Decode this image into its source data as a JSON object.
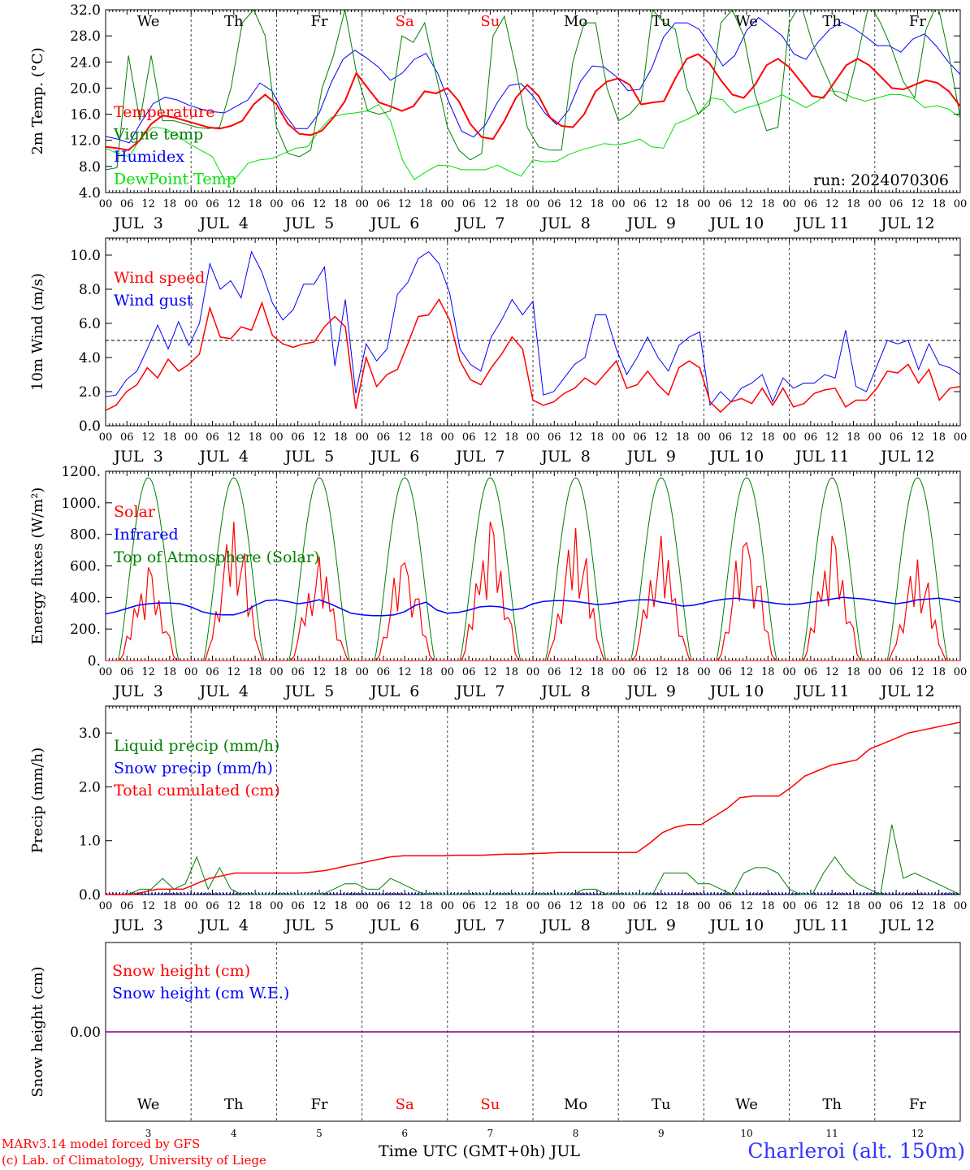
{
  "footer": {
    "credit_line1": "MARv3.14 model forced by GFS",
    "credit_line2": "(c) Lab. of Climatology, University of Liege",
    "station": "Charleroi (alt. 150m)",
    "xaxis_title": "Time UTC (GMT+0h) JUL"
  },
  "colors": {
    "red": "#ff0000",
    "green": "#008000",
    "blue": "#0000ff",
    "lightgreen": "#00e000",
    "purple": "#800080",
    "grid": "#404040"
  },
  "chart_data": [
    {
      "type": "line",
      "ylabel": "2m Temp. (°C)",
      "ylim": [
        4.0,
        32.0
      ],
      "yticks": [
        "4.0",
        "8.0",
        "12.0",
        "16.0",
        "20.0",
        "24.0",
        "28.0",
        "32.0"
      ],
      "annotation": "run: 2024070306",
      "hour_ticks": [
        "00",
        "06",
        "12",
        "18"
      ],
      "day_labels": [
        "JUL  3",
        "JUL  4",
        "JUL  5",
        "JUL  6",
        "JUL  7",
        "JUL  8",
        "JUL  9",
        "JUL 10",
        "JUL 11",
        "JUL 12"
      ],
      "weekdays": [
        "We",
        "Th",
        "Fr",
        "Sa",
        "Su",
        "Mo",
        "Tu",
        "We",
        "Th",
        "Fr"
      ],
      "weekend_flags": [
        false,
        false,
        false,
        true,
        true,
        false,
        false,
        false,
        false,
        false
      ],
      "x_hours_step": 3,
      "legend": [
        "Temperature",
        "Vigne temp",
        "Humidex",
        "DewPoint Temp"
      ],
      "series": [
        {
          "name": "Temperature",
          "color": "#ff0000",
          "values": [
            11,
            10.8,
            10.5,
            12,
            14.5,
            15.8,
            15.5,
            15,
            14.5,
            14,
            13.8,
            14.2,
            15,
            17.5,
            19,
            17.5,
            14.5,
            13,
            12.8,
            13.5,
            15.5,
            18,
            22.3,
            20,
            17.8,
            17.2,
            16.5,
            17.2,
            19.5,
            19.2,
            20,
            18,
            14.5,
            12.5,
            12.2,
            15,
            18.5,
            20.5,
            18.8,
            15.5,
            14.2,
            14,
            16,
            19.5,
            21,
            21.5,
            20.5,
            17.5,
            17.8,
            18,
            21.5,
            24.5,
            25.2,
            23.8,
            21.2,
            19,
            18.5,
            20.5,
            23.5,
            24.5,
            23.2,
            21,
            18.8,
            18.5,
            21,
            23.5,
            24.5,
            23.5,
            21.8,
            20,
            19.8,
            20.5,
            21.2,
            20.8,
            19.5,
            17.2
          ]
        },
        {
          "name": "Vigne temp",
          "color": "#008000",
          "values": [
            7.5,
            7.8,
            25,
            15,
            25,
            15,
            15,
            14.5,
            14,
            13.8,
            14,
            20,
            30,
            32,
            28,
            14,
            10,
            9.5,
            10.5,
            20,
            25,
            32,
            22.5,
            16.5,
            16,
            16.5,
            28,
            27,
            30,
            22,
            14,
            10.5,
            9,
            10,
            28,
            31,
            23,
            14,
            11,
            10.5,
            10.5,
            24,
            30,
            30,
            20,
            15,
            16,
            18,
            32,
            30,
            29,
            20,
            16,
            17.5,
            30,
            32,
            28,
            19,
            13.5,
            14,
            30,
            33,
            27,
            23,
            19,
            18,
            25,
            33,
            30,
            26,
            21,
            18.5,
            29,
            33,
            25,
            15.5
          ]
        },
        {
          "name": "Humidex",
          "color": "#0000ff",
          "values": [
            12.6,
            12.2,
            11.6,
            14.8,
            17.6,
            18.6,
            18.2,
            17.4,
            16.8,
            16.4,
            16.2,
            17.2,
            18.2,
            20.8,
            19.6,
            16.2,
            13.8,
            13.8,
            16.2,
            20.8,
            24.4,
            25.8,
            24.6,
            23.2,
            21.2,
            22.3,
            24.4,
            25.3,
            22.2,
            17.5,
            13.4,
            12.5,
            14.4,
            17.8,
            20.4,
            20.7,
            18.8,
            16.2,
            14.4,
            16.6,
            21,
            23.4,
            23.2,
            21.8,
            19.6,
            19.8,
            23,
            27.8,
            30,
            30,
            29,
            26.4,
            23.4,
            25,
            28.8,
            30.8,
            29.4,
            28,
            25.2,
            24.4,
            27,
            29,
            30.1,
            29.2,
            27.9,
            26.5,
            26.5,
            25.5,
            27.5,
            28.3,
            26.4,
            24,
            22.1
          ]
        },
        {
          "name": "DewPoint Temp",
          "color": "#00e000",
          "values": [
            10.8,
            10,
            9.5,
            12.5,
            14,
            13.8,
            12.8,
            11.5,
            10.5,
            9.5,
            6,
            6.2,
            8.5,
            9,
            9.2,
            10,
            10.8,
            11,
            13.5,
            15.5,
            16,
            16.2,
            16.5,
            17.5,
            15,
            9,
            6,
            7.2,
            8.2,
            8.1,
            7.5,
            7.5,
            7.5,
            8.2,
            7.3,
            6.5,
            9,
            8.7,
            8.8,
            9.8,
            10.5,
            11,
            11.5,
            11.3,
            11.6,
            12.2,
            11,
            10.8,
            14.5,
            15.2,
            16.2,
            18.5,
            18.2,
            16.2,
            17,
            17.5,
            18.2,
            19,
            18,
            17,
            18,
            19.6,
            19.4,
            18.5,
            18,
            18.5,
            19,
            19,
            18.5,
            17,
            17.3,
            16.8,
            15.5
          ]
        }
      ]
    },
    {
      "type": "line",
      "ylabel": "10m Wind (m/s)",
      "ylim": [
        0.0,
        11.0
      ],
      "yticks": [
        "0.0",
        "2.0",
        "4.0",
        "6.0",
        "8.0",
        "10.0"
      ],
      "ref_line": 5.0,
      "legend": [
        "Wind speed",
        "Wind gust"
      ],
      "series": [
        {
          "name": "Wind speed",
          "color": "#ff0000",
          "values": [
            0.9,
            1.2,
            2,
            2.4,
            3.4,
            2.8,
            3.9,
            3.2,
            3.6,
            4.2,
            6.9,
            5.2,
            5.1,
            5.8,
            5.6,
            7.2,
            5.3,
            4.8,
            4.6,
            4.8,
            4.9,
            5.8,
            6.4,
            5.8,
            1,
            4,
            2.3,
            3,
            3.3,
            4.8,
            6.4,
            6.5,
            7.4,
            6.2,
            3.8,
            2.7,
            2.4,
            3.4,
            4.2,
            5.2,
            4.5,
            1.5,
            1.2,
            1.4,
            1.9,
            2.2,
            2.8,
            2.4,
            3.1,
            3.8,
            2.2,
            2.4,
            3.2,
            2.4,
            1.8,
            3.4,
            3.8,
            3.4,
            1.4,
            0.8,
            1.4,
            1.6,
            1.3,
            2.2,
            1.2,
            2.2,
            1.1,
            1.3,
            1.9,
            2.1,
            2.2,
            1.1,
            1.5,
            1.5,
            2.2,
            3.2,
            3.1,
            3.6,
            2.5,
            3.3,
            1.5,
            2.2,
            2.3
          ]
        },
        {
          "name": "Wind gust",
          "color": "#0000ff",
          "values": [
            1.7,
            1.8,
            2.7,
            3.2,
            4.5,
            5.9,
            4.5,
            6.1,
            4.7,
            6,
            9.5,
            8,
            8.5,
            7.5,
            10.2,
            9,
            7.2,
            6.2,
            6.8,
            8.3,
            8.3,
            9.3,
            3.5,
            7.4,
            1.9,
            4.8,
            3.8,
            4.5,
            7.7,
            8.4,
            9.8,
            10.2,
            9.5,
            7.8,
            4.5,
            3.6,
            3.2,
            5.2,
            6.2,
            7.4,
            6.5,
            7.3,
            1.8,
            2,
            2.8,
            3.6,
            4,
            6.5,
            6.5,
            4.5,
            3,
            4,
            5.2,
            4,
            3.2,
            4.7,
            5.2,
            5.5,
            1.2,
            2,
            1.4,
            2.2,
            2.5,
            3,
            1.4,
            2.8,
            2.2,
            2.5,
            2.5,
            3,
            2.8,
            5.6,
            2.3,
            2,
            3.5,
            5,
            4.8,
            5,
            3.3,
            4.8,
            3.6,
            3.4,
            3
          ]
        }
      ]
    },
    {
      "type": "line",
      "ylabel": "Energy fluxes (W/m²)",
      "ylim": [
        0,
        1200
      ],
      "yticks": [
        "0.",
        "200.",
        "400.",
        "600.",
        "800.",
        "1000.",
        "1200."
      ],
      "legend": [
        "Solar",
        "Infrared",
        "Top of Atmosphere (Solar)"
      ],
      "toa_peak": 1160,
      "solar_day_peaks": [
        590,
        880,
        660,
        680,
        880,
        840,
        790,
        820,
        790,
        640
      ],
      "infrared_values": [
        295,
        310,
        330,
        350,
        360,
        365,
        365,
        360,
        340,
        310,
        295,
        290,
        290,
        310,
        350,
        380,
        385,
        375,
        360,
        370,
        385,
        360,
        330,
        300,
        290,
        285,
        285,
        290,
        310,
        350,
        370,
        320,
        300,
        305,
        320,
        340,
        345,
        340,
        320,
        330,
        360,
        375,
        380,
        380,
        375,
        365,
        355,
        360,
        370,
        380,
        385,
        385,
        370,
        360,
        345,
        350,
        365,
        380,
        390,
        395,
        385,
        380,
        370,
        360,
        355,
        360,
        370,
        380,
        390,
        400,
        395,
        390,
        380,
        370,
        360,
        370,
        385,
        390,
        395,
        385,
        370
      ]
    },
    {
      "type": "line",
      "ylabel": "Precip (mm/h)",
      "ylim": [
        0.0,
        3.5
      ],
      "yticks": [
        "0.0",
        "1.0",
        "2.0",
        "3.0"
      ],
      "legend": [
        "Liquid precip (mm/h)",
        "Snow precip (mm/h)",
        "Total cumulated (cm)"
      ],
      "series": [
        {
          "name": "Liquid precip (mm/h)",
          "color": "#008000",
          "values": [
            0,
            0,
            0,
            0.1,
            0.1,
            0.3,
            0.1,
            0.2,
            0.7,
            0.1,
            0.5,
            0.1,
            0,
            0,
            0,
            0,
            0,
            0,
            0,
            0,
            0.1,
            0.2,
            0.2,
            0.1,
            0.1,
            0.3,
            0.2,
            0.1,
            0,
            0,
            0,
            0,
            0,
            0,
            0,
            0,
            0,
            0,
            0,
            0,
            0,
            0,
            0.1,
            0.1,
            0,
            0,
            0,
            0,
            0,
            0.4,
            0.4,
            0.4,
            0.2,
            0.2,
            0.1,
            0,
            0.4,
            0.5,
            0.5,
            0.4,
            0.1,
            0,
            0,
            0.4,
            0.7,
            0.4,
            0.2,
            0.1,
            0,
            1.3,
            0.3,
            0.4,
            0.3,
            0.2,
            0.1,
            0
          ]
        },
        {
          "name": "Total cumulated (cm)",
          "color": "#ff0000",
          "values": [
            0,
            0,
            0,
            0.05,
            0.1,
            0.1,
            0.1,
            0.2,
            0.3,
            0.35,
            0.4,
            0.4,
            0.4,
            0.4,
            0.4,
            0.4,
            0.42,
            0.45,
            0.5,
            0.55,
            0.6,
            0.65,
            0.7,
            0.72,
            0.72,
            0.72,
            0.72,
            0.73,
            0.73,
            0.73,
            0.74,
            0.75,
            0.75,
            0.76,
            0.77,
            0.78,
            0.78,
            0.78,
            0.78,
            0.78,
            0.78,
            0.78,
            0.95,
            1.15,
            1.25,
            1.3,
            1.3,
            1.45,
            1.6,
            1.8,
            1.83,
            1.83,
            1.83,
            2.0,
            2.2,
            2.3,
            2.4,
            2.45,
            2.5,
            2.7,
            2.8,
            2.9,
            3.0,
            3.05,
            3.1,
            3.15,
            3.2
          ]
        }
      ]
    },
    {
      "type": "line",
      "ylabel": "Snow height (cm)",
      "yticks": [
        "0.00"
      ],
      "legend": [
        "Snow height (cm)",
        "Snow height (cm W.E.)"
      ],
      "series": [
        {
          "name": "Snow height (cm)",
          "color": "#ff0000",
          "values": [
            0,
            0
          ]
        },
        {
          "name": "Snow height (cm W.E.)",
          "color": "#0000ff",
          "values": [
            0,
            0
          ]
        }
      ],
      "day_numbers": [
        "3",
        "4",
        "5",
        "6",
        "7",
        "8",
        "9",
        "10",
        "11",
        "12"
      ]
    }
  ]
}
